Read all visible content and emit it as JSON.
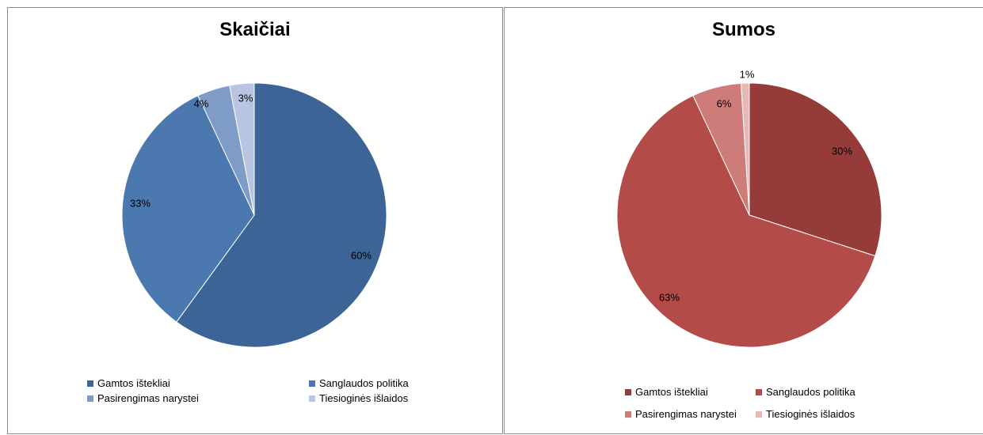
{
  "chart_data": [
    {
      "type": "pie",
      "title": "Skaičiai",
      "slices": [
        {
          "name": "Gamtos ištekliai",
          "value": 60,
          "label": "60%",
          "color": "#3c6496"
        },
        {
          "name": "Sanglaudos politika",
          "value": 33,
          "label": "33%",
          "color": "#4a78af"
        },
        {
          "name": "Pasirengimas narystei",
          "value": 4,
          "label": "4%",
          "color": "#7f9cc9"
        },
        {
          "name": "Tiesioginės išlaidos",
          "value": 3,
          "label": "3%",
          "color": "#b7c5e2"
        }
      ],
      "legend_position": "bottom"
    },
    {
      "type": "pie",
      "title": "Sumos",
      "slices": [
        {
          "name": "Gamtos ištekliai",
          "value": 30,
          "label": "30%",
          "color": "#953b39"
        },
        {
          "name": "Sanglaudos politika",
          "value": 63,
          "label": "63%",
          "color": "#b34b49"
        },
        {
          "name": "Pasirengimas narystei",
          "value": 6,
          "label": "6%",
          "color": "#cd7c7a"
        },
        {
          "name": "Tiesioginės išlaidos",
          "value": 1,
          "label": "1%",
          "color": "#e6b9b8"
        }
      ],
      "legend_position": "bottom"
    }
  ]
}
